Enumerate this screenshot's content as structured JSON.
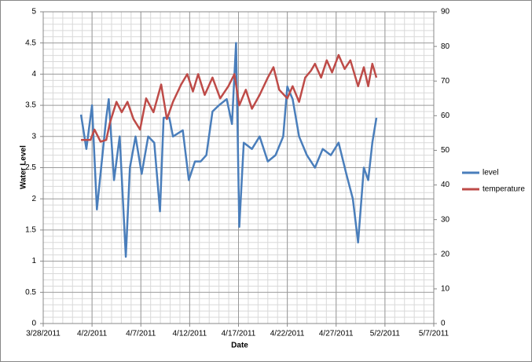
{
  "chart_data": {
    "type": "line",
    "xlabel": "Date",
    "ylabel": "Water Level",
    "xlim": [
      "2011-03-28",
      "2011-05-07"
    ],
    "xticks": [
      {
        "value": "2011-03-28",
        "label": "3/28/2011"
      },
      {
        "value": "2011-04-02",
        "label": "4/2/2011"
      },
      {
        "value": "2011-04-07",
        "label": "4/7/2011"
      },
      {
        "value": "2011-04-12",
        "label": "4/12/2011"
      },
      {
        "value": "2011-04-17",
        "label": "4/17/2011"
      },
      {
        "value": "2011-04-22",
        "label": "4/22/2011"
      },
      {
        "value": "2011-04-27",
        "label": "4/27/2011"
      },
      {
        "value": "2011-05-02",
        "label": "5/2/2011"
      },
      {
        "value": "2011-05-07",
        "label": "5/7/2011"
      }
    ],
    "ylim": [
      0,
      5
    ],
    "yticks": [
      0,
      0.5,
      1,
      1.5,
      2,
      2.5,
      3,
      3.5,
      4,
      4.5,
      5
    ],
    "y2lim": [
      0,
      90
    ],
    "y2ticks": [
      0,
      10,
      20,
      30,
      40,
      50,
      60,
      70,
      80,
      90
    ],
    "grid": true,
    "legend": "right",
    "series": [
      {
        "name": "level",
        "color": "#4a7ebb",
        "x": [
          "2011-03-31T21:00",
          "2011-04-01T10:00",
          "2011-04-02T00:00",
          "2011-04-02T12:00",
          "2011-04-03T11:00",
          "2011-04-03T17:00",
          "2011-04-04T06:00",
          "2011-04-04T20:00",
          "2011-04-05T11:00",
          "2011-04-05T21:00",
          "2011-04-06T11:00",
          "2011-04-07T02:00",
          "2011-04-07T18:00",
          "2011-04-08T09:00",
          "2011-04-08T23:00",
          "2011-04-09T08:00",
          "2011-04-09T22:00",
          "2011-04-10T07:00",
          "2011-04-11T07:00",
          "2011-04-11T22:00",
          "2011-04-12T13:00",
          "2011-04-13T03:00",
          "2011-04-13T17:00",
          "2011-04-14T08:00",
          "2011-04-15T00:00",
          "2011-04-15T19:00",
          "2011-04-16T08:00",
          "2011-04-16T18:00",
          "2011-04-17T02:00",
          "2011-04-17T13:00",
          "2011-04-18T09:00",
          "2011-04-19T04:00",
          "2011-04-20T00:00",
          "2011-04-20T19:00",
          "2011-04-21T14:00",
          "2011-04-22T00:00",
          "2011-04-22T13:00",
          "2011-04-23T05:00",
          "2011-04-24T00:00",
          "2011-04-24T20:00",
          "2011-04-25T15:00",
          "2011-04-26T11:00",
          "2011-04-27T06:00",
          "2011-04-28T01:00",
          "2011-04-28T17:00",
          "2011-04-29T06:00",
          "2011-04-29T20:00",
          "2011-04-30T07:00",
          "2011-04-30T17:00",
          "2011-05-01T03:00"
        ],
        "values": [
          3.35,
          2.8,
          3.5,
          1.83,
          3.3,
          3.6,
          2.3,
          3.0,
          1.07,
          2.5,
          3.0,
          2.4,
          3.0,
          2.9,
          1.8,
          3.3,
          3.3,
          3.0,
          3.1,
          2.3,
          2.6,
          2.6,
          2.7,
          3.4,
          3.5,
          3.6,
          3.2,
          4.5,
          1.55,
          2.9,
          2.8,
          3.0,
          2.6,
          2.7,
          3.0,
          3.8,
          3.6,
          3.0,
          2.7,
          2.5,
          2.8,
          2.7,
          2.9,
          2.4,
          2.0,
          1.3,
          2.5,
          2.3,
          2.9,
          3.3
        ]
      },
      {
        "name": "temperature",
        "color": "#be4b48",
        "axis": "y2",
        "x": [
          "2011-03-31T21:00",
          "2011-04-01T20:00",
          "2011-04-02T06:00",
          "2011-04-02T21:00",
          "2011-04-03T11:00",
          "2011-04-03T20:00",
          "2011-04-04T12:00",
          "2011-04-05T01:00",
          "2011-04-05T15:00",
          "2011-04-06T06:00",
          "2011-04-06T22:00",
          "2011-04-07T13:00",
          "2011-04-08T07:00",
          "2011-04-09T02:00",
          "2011-04-09T16:00",
          "2011-04-10T07:00",
          "2011-04-11T03:00",
          "2011-04-11T18:00",
          "2011-04-12T08:00",
          "2011-04-12T21:00",
          "2011-04-13T13:00",
          "2011-04-14T08:00",
          "2011-04-15T03:00",
          "2011-04-15T23:00",
          "2011-04-16T14:00",
          "2011-04-17T02:00",
          "2011-04-17T18:00",
          "2011-04-18T09:00",
          "2011-04-19T04:00",
          "2011-04-20T00:00",
          "2011-04-20T14:00",
          "2011-04-21T04:00",
          "2011-04-22T00:00",
          "2011-04-22T13:00",
          "2011-04-23T05:00",
          "2011-04-23T20:00",
          "2011-04-24T10:00",
          "2011-04-24T20:00",
          "2011-04-25T11:00",
          "2011-04-26T01:00",
          "2011-04-26T14:00",
          "2011-04-27T06:00",
          "2011-04-27T21:00",
          "2011-04-28T11:00",
          "2011-04-29T06:00",
          "2011-04-29T20:00",
          "2011-04-30T07:00",
          "2011-04-30T17:00",
          "2011-05-01T03:00"
        ],
        "values": [
          53,
          53,
          56,
          52.5,
          53,
          58,
          64,
          61,
          64,
          59,
          56,
          65,
          61,
          69,
          59,
          64,
          69,
          72,
          67,
          72,
          66,
          71,
          65,
          68.5,
          72,
          63,
          67.5,
          62,
          66,
          71,
          74,
          67.5,
          65,
          68.5,
          64,
          71,
          73,
          75,
          71,
          76,
          72.5,
          77.5,
          73.5,
          76,
          68.5,
          74,
          68.5,
          75,
          71
        ]
      }
    ]
  }
}
